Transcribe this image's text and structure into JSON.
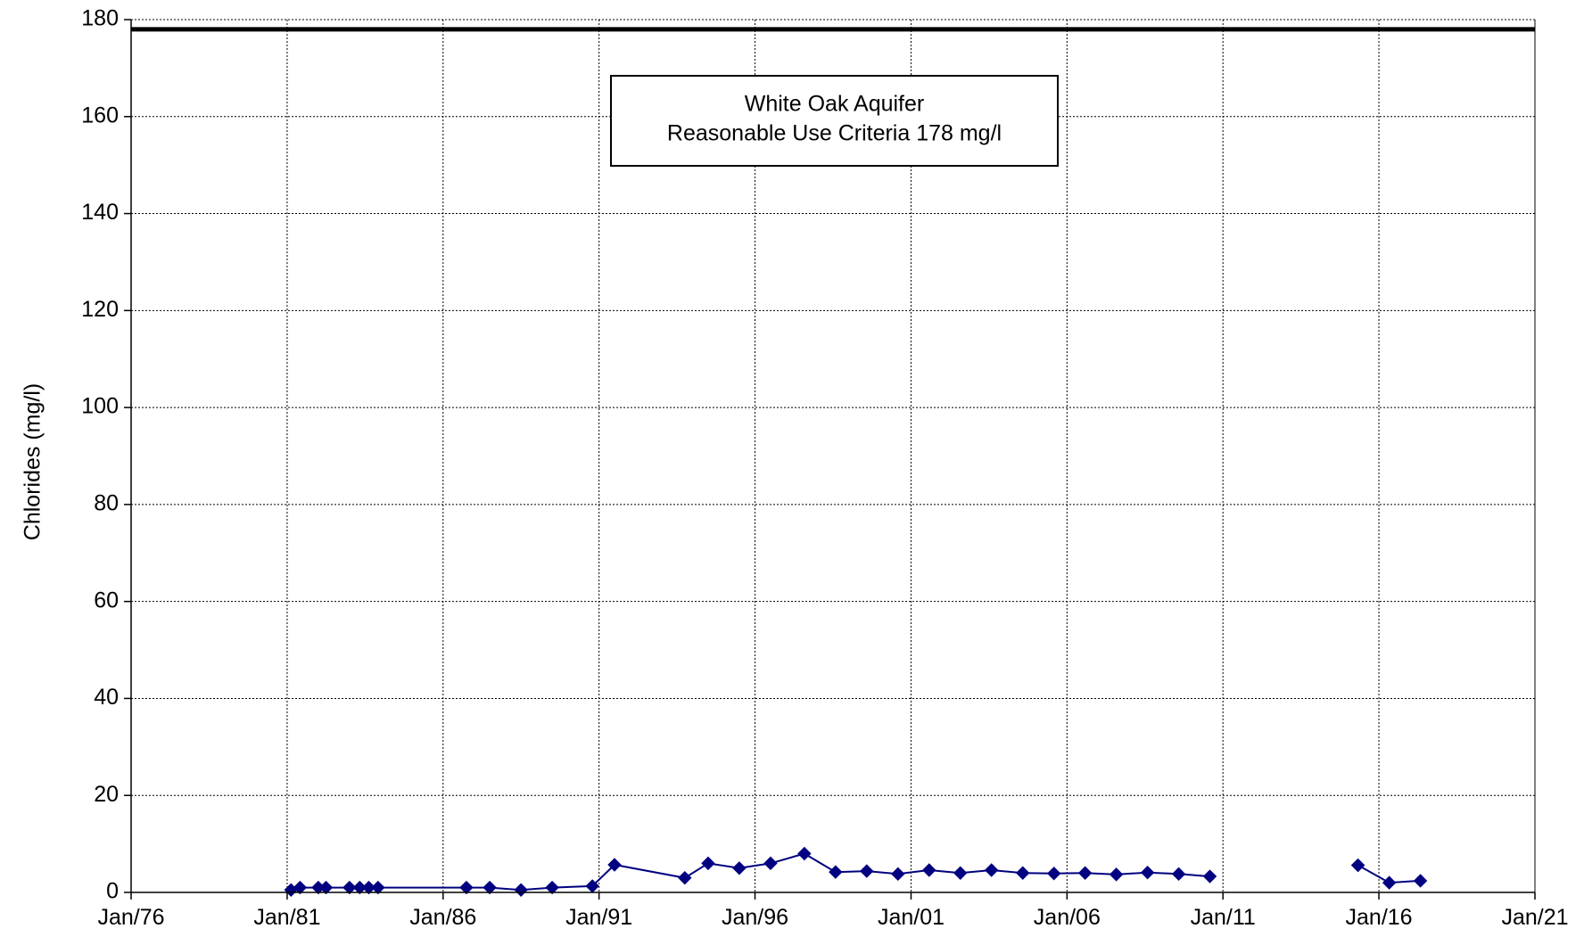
{
  "chart_data": {
    "type": "line",
    "title": "",
    "xlabel": "",
    "ylabel": "Chlorides (mg/l)",
    "x_axis": {
      "type": "date",
      "min": "1976-01-01",
      "max": "2021-01-01",
      "ticks": [
        {
          "date": "1976-01-01",
          "label": "Jan/76"
        },
        {
          "date": "1981-01-01",
          "label": "Jan/81"
        },
        {
          "date": "1986-01-01",
          "label": "Jan/86"
        },
        {
          "date": "1991-01-01",
          "label": "Jan/91"
        },
        {
          "date": "1996-01-01",
          "label": "Jan/96"
        },
        {
          "date": "2001-01-01",
          "label": "Jan/01"
        },
        {
          "date": "2006-01-01",
          "label": "Jan/06"
        },
        {
          "date": "2011-01-01",
          "label": "Jan/11"
        },
        {
          "date": "2016-01-01",
          "label": "Jan/16"
        },
        {
          "date": "2021-01-01",
          "label": "Jan/21"
        }
      ]
    },
    "y_axis": {
      "min": 0,
      "max": 180,
      "ticks": [
        0,
        20,
        40,
        60,
        80,
        100,
        120,
        140,
        160,
        180
      ]
    },
    "grid": true,
    "reference_line": {
      "value": 178,
      "color": "#000000"
    },
    "annotation": {
      "lines": [
        "White Oak Aquifer",
        "Reasonable Use Criteria 178 mg/l"
      ]
    },
    "series": [
      {
        "color": "#000080",
        "segments": [
          [
            {
              "x": "1981-02-15",
              "y": 0.5
            },
            {
              "x": "1981-06-01",
              "y": 1
            },
            {
              "x": "1982-01-01",
              "y": 1
            },
            {
              "x": "1982-04-01",
              "y": 1
            },
            {
              "x": "1983-01-01",
              "y": 1
            },
            {
              "x": "1983-05-01",
              "y": 1
            },
            {
              "x": "1983-08-15",
              "y": 1
            },
            {
              "x": "1983-12-01",
              "y": 1
            },
            {
              "x": "1986-10-01",
              "y": 1
            },
            {
              "x": "1987-07-01",
              "y": 1
            },
            {
              "x": "1988-07-01",
              "y": 0.5
            },
            {
              "x": "1989-07-01",
              "y": 1
            },
            {
              "x": "1990-10-15",
              "y": 1.3
            },
            {
              "x": "1991-07-01",
              "y": 5.7
            },
            {
              "x": "1993-10-01",
              "y": 3
            },
            {
              "x": "1994-07-01",
              "y": 6
            },
            {
              "x": "1995-07-01",
              "y": 5
            },
            {
              "x": "1996-07-01",
              "y": 6
            },
            {
              "x": "1997-08-01",
              "y": 8
            },
            {
              "x": "1998-08-01",
              "y": 4.2
            },
            {
              "x": "1999-08-01",
              "y": 4.4
            },
            {
              "x": "2000-08-01",
              "y": 3.8
            },
            {
              "x": "2001-08-01",
              "y": 4.6
            },
            {
              "x": "2002-08-01",
              "y": 4
            },
            {
              "x": "2003-08-01",
              "y": 4.6
            },
            {
              "x": "2004-08-01",
              "y": 4
            },
            {
              "x": "2005-08-01",
              "y": 3.9
            },
            {
              "x": "2006-08-01",
              "y": 4
            },
            {
              "x": "2007-08-01",
              "y": 3.7
            },
            {
              "x": "2008-08-01",
              "y": 4.1
            },
            {
              "x": "2009-08-01",
              "y": 3.8
            },
            {
              "x": "2010-08-01",
              "y": 3.3
            }
          ],
          [
            {
              "x": "2015-05-01",
              "y": 5.6
            },
            {
              "x": "2015-05-01",
              "y": 5.6
            },
            {
              "x": "2016-05-01",
              "y": 2
            },
            {
              "x": "2017-05-01",
              "y": 2.4
            }
          ]
        ]
      }
    ]
  }
}
